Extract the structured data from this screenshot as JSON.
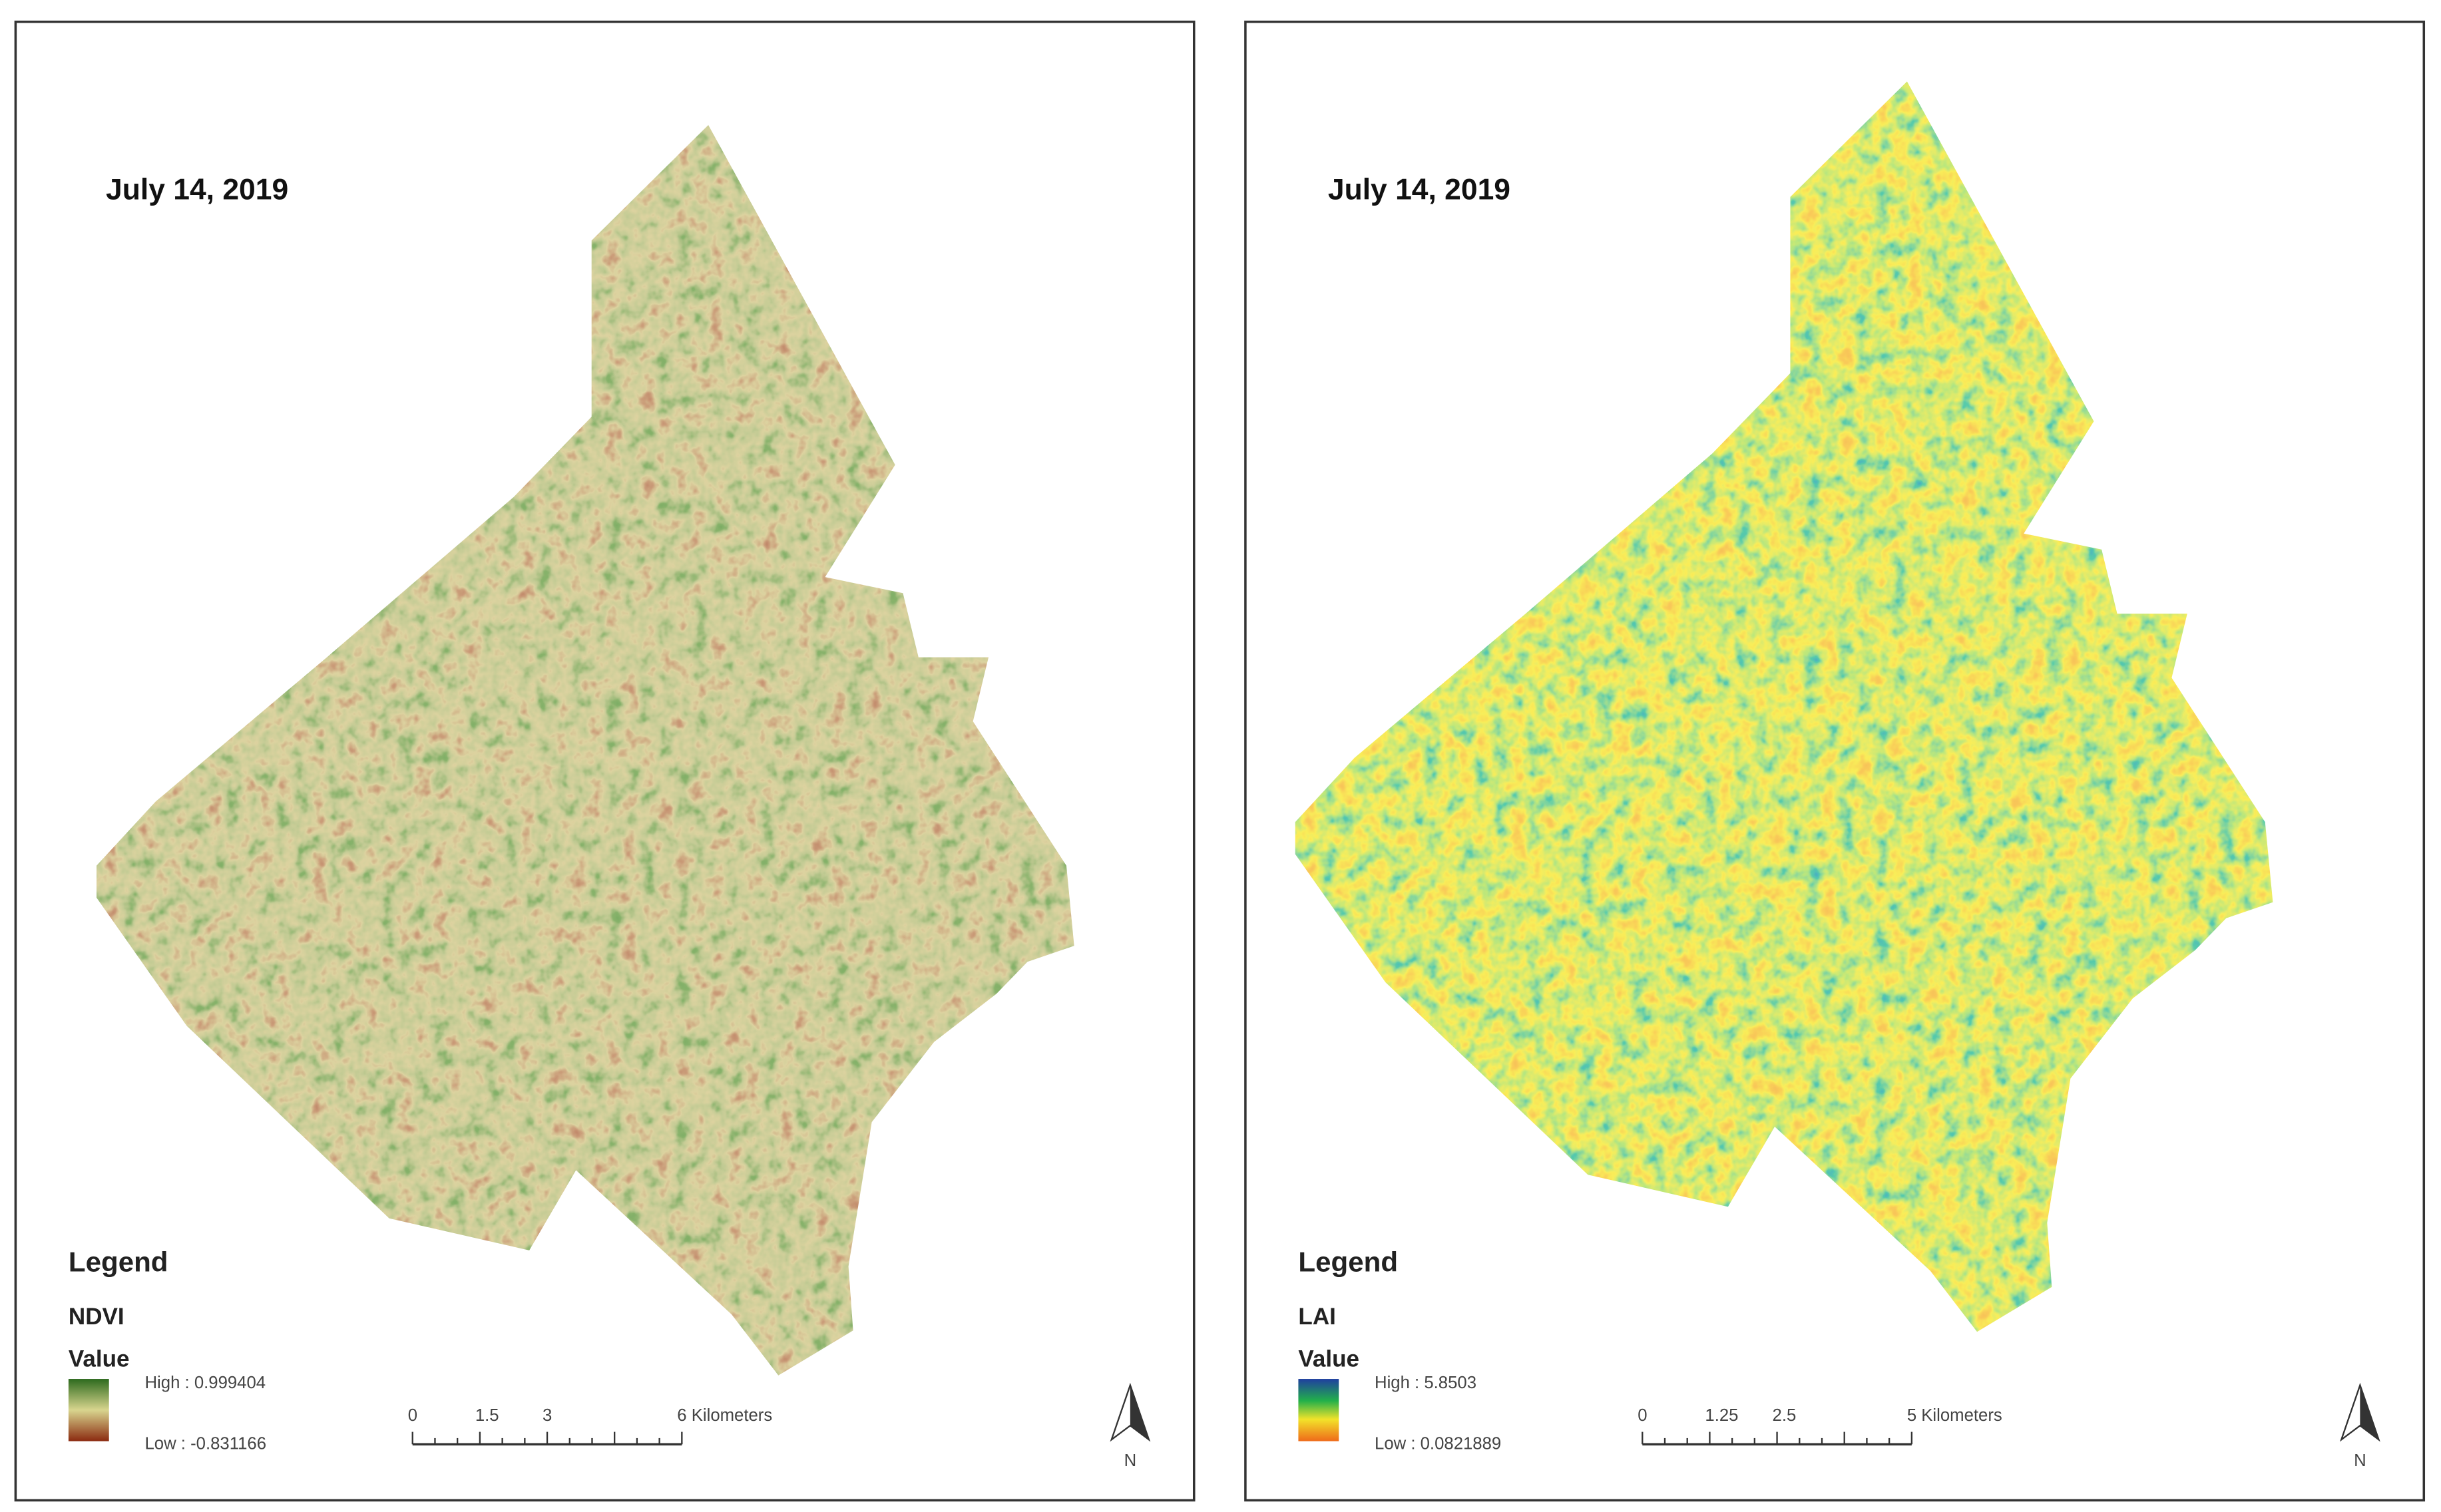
{
  "panels": [
    {
      "date": "July 14, 2019",
      "legend_title": "Legend",
      "layer": "NDVI",
      "value_label": "Value",
      "high": "High : 0.999404",
      "low": "Low : -0.831166",
      "scale_labels": [
        "0",
        "1.5",
        "3",
        "6 Kilometers"
      ],
      "north": "N"
    },
    {
      "date": "July 14, 2019",
      "legend_title": "Legend",
      "layer": "LAI",
      "value_label": "Value",
      "high": "High : 5.8503",
      "low": "Low : 0.0821889",
      "scale_labels": [
        "0",
        "1.25",
        "2.5",
        "5 Kilometers"
      ],
      "north": "N"
    }
  ]
}
